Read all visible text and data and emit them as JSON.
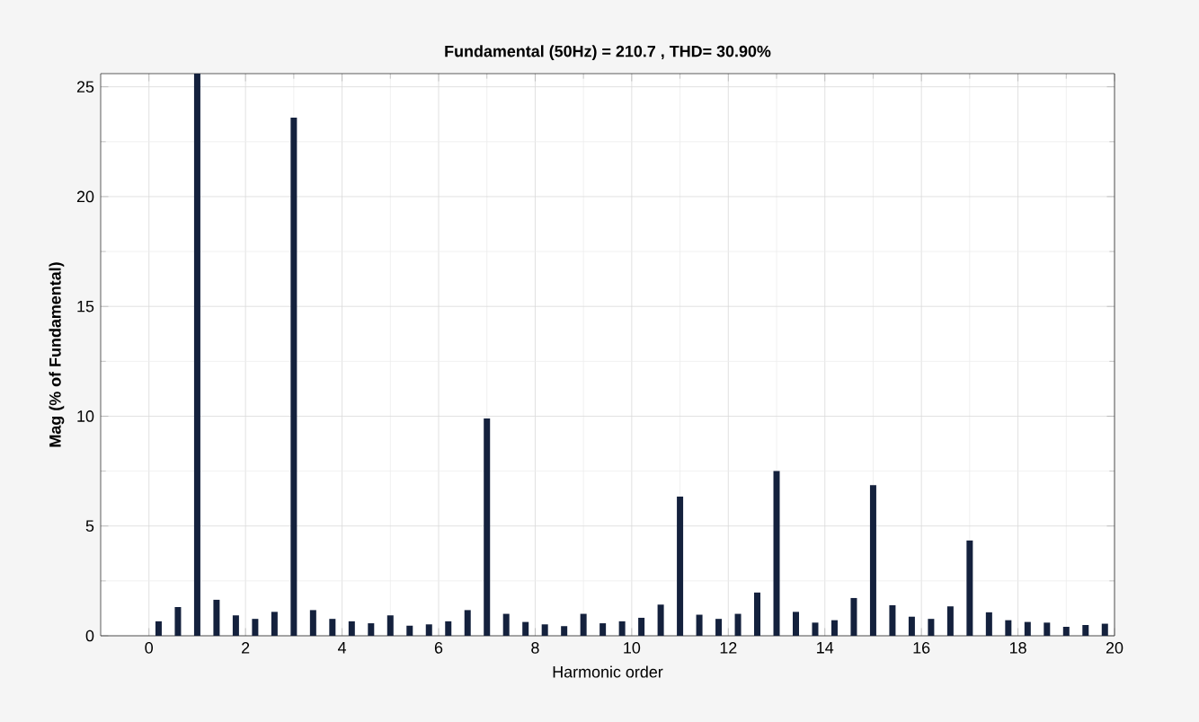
{
  "chart_data": {
    "type": "bar",
    "title": "Fundamental (50Hz) = 210.7 , THD= 30.90%",
    "xlabel": "Harmonic order",
    "ylabel": "Mag (% of Fundamental)",
    "x": [
      0.2,
      0.6,
      1.0,
      1.4,
      1.8,
      2.2,
      2.6,
      3.0,
      3.4,
      3.8,
      4.2,
      4.6,
      5.0,
      5.4,
      5.8,
      6.2,
      6.6,
      7.0,
      7.4,
      7.8,
      8.2,
      8.6,
      9.0,
      9.4,
      9.8,
      10.2,
      10.6,
      11.0,
      11.4,
      11.8,
      12.2,
      12.6,
      13.0,
      13.4,
      13.8,
      14.2,
      14.6,
      15.0,
      15.4,
      15.8,
      16.2,
      16.6,
      17.0,
      17.4,
      17.8,
      18.2,
      18.6,
      19.0,
      19.4,
      19.8
    ],
    "values": [
      0.66,
      1.31,
      25.6,
      1.64,
      0.93,
      0.77,
      1.09,
      23.6,
      1.17,
      0.77,
      0.66,
      0.57,
      0.93,
      0.46,
      0.52,
      0.66,
      1.17,
      9.9,
      1.0,
      0.63,
      0.52,
      0.44,
      1.0,
      0.57,
      0.66,
      0.82,
      1.42,
      6.34,
      0.96,
      0.77,
      1.0,
      1.97,
      7.5,
      1.09,
      0.6,
      0.71,
      1.72,
      6.86,
      1.39,
      0.87,
      0.77,
      1.34,
      4.34,
      1.07,
      0.71,
      0.63,
      0.6,
      0.41,
      0.49,
      0.55
    ],
    "color": "#14213d",
    "xlim": [
      -1,
      20
    ],
    "ylim": [
      0,
      25.6
    ],
    "xticks": [
      0,
      2,
      4,
      6,
      8,
      10,
      12,
      14,
      16,
      18,
      20
    ],
    "yticks": [
      0,
      5,
      10,
      15,
      20,
      25
    ],
    "grid": true
  }
}
